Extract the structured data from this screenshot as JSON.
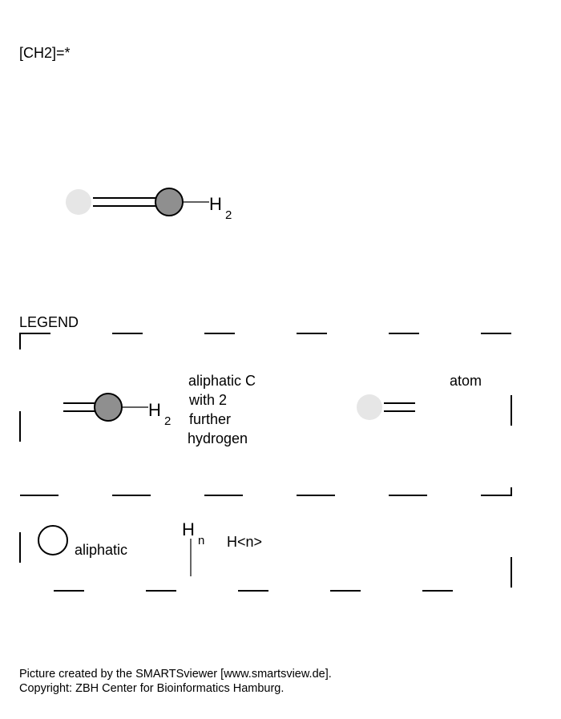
{
  "smarts": "[CH2]=*",
  "molecule": {
    "hydrogen_symbol": "H",
    "hydrogen_count": "2"
  },
  "legend": {
    "title": "LEGEND",
    "row1": {
      "hydrogen_symbol": "H",
      "hydrogen_count": "2",
      "desc_lines": [
        "aliphatic C",
        "with 2",
        "further",
        "hydrogen"
      ],
      "any_atom_label": "atom"
    },
    "row2": {
      "aliphatic_label": "aliphatic",
      "hn_symbol": "H",
      "hn_subscript": "n",
      "hn_label": "H<n>"
    }
  },
  "colors": {
    "carbon_fill": "#8f8f8f",
    "any_atom_fill": "#e6e6e6",
    "line": "#000000"
  },
  "footer": {
    "line1": "Picture created by the SMARTSviewer [www.smartsview.de].",
    "line2": "Copyright: ZBH Center for Bioinformatics Hamburg."
  }
}
